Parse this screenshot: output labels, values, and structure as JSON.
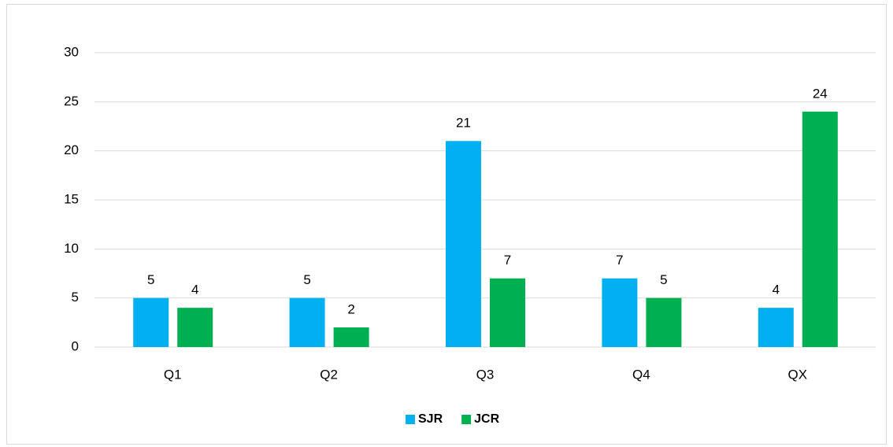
{
  "chart_data": {
    "type": "bar",
    "categories": [
      "Q1",
      "Q2",
      "Q3",
      "Q4",
      "QX"
    ],
    "series": [
      {
        "name": "SJR",
        "color": "#00b0f0",
        "values": [
          5,
          5,
          21,
          7,
          4
        ]
      },
      {
        "name": "JCR",
        "color": "#00b050",
        "values": [
          4,
          2,
          7,
          5,
          24
        ]
      }
    ],
    "ylim": [
      0,
      30
    ],
    "yticks": [
      0,
      5,
      10,
      15,
      20,
      25,
      30
    ],
    "grid": true,
    "legend": "bottom"
  }
}
